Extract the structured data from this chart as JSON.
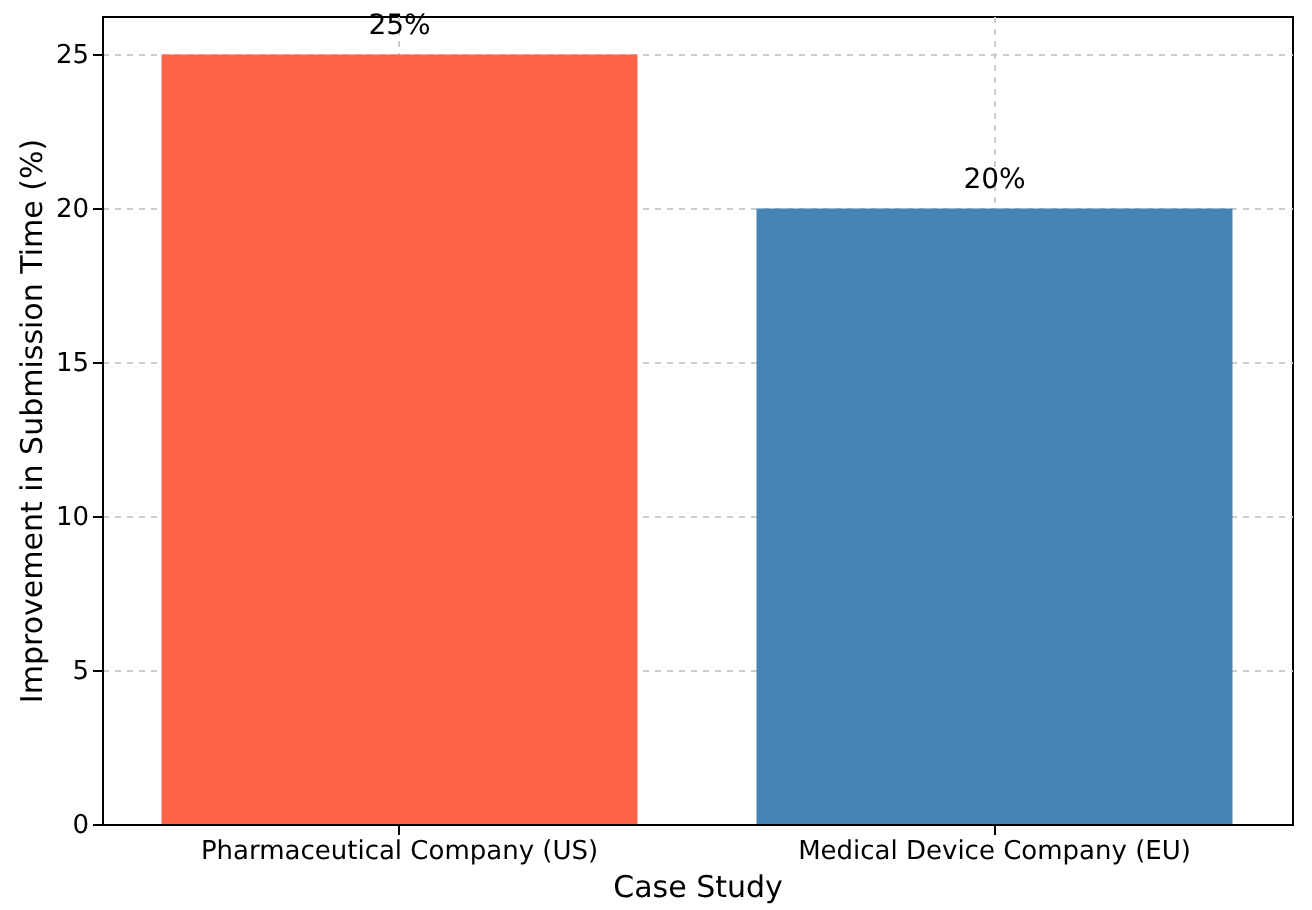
{
  "chart_data": {
    "type": "bar",
    "xlabel": "Case Study",
    "ylabel": "Improvement in Submission Time (%)",
    "categories": [
      "Pharmaceutical Company (US)",
      "Medical Device Company (EU)"
    ],
    "values": [
      25,
      20
    ],
    "colors": [
      "#ff6347",
      "#4682b4"
    ],
    "value_labels": [
      "25%",
      "20%"
    ],
    "ylim": [
      0,
      26.25
    ],
    "yticks": [
      0,
      5,
      10,
      15,
      20,
      25
    ],
    "grid": true
  }
}
